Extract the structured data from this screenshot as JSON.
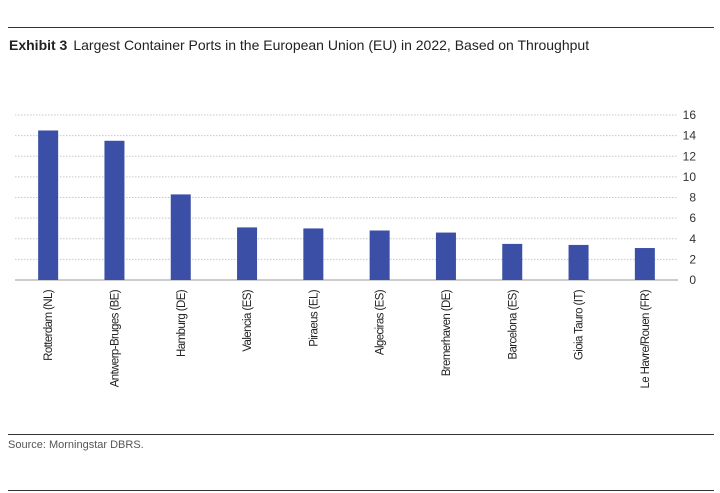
{
  "header": {
    "exhibit": "Exhibit 3",
    "title": "Largest Container Ports in the European Union (EU) in 2022, Based on Throughput"
  },
  "footer": {
    "source": "Source: Morningstar DBRS."
  },
  "chart_data": {
    "type": "bar",
    "categories": [
      "Rotterdam (NL)",
      "Antwerp-Bruges (BE)",
      "Hamburg (DE)",
      "Valencia (ES)",
      "Piraeus (EL)",
      "Algeciras (ES)",
      "Bremerhaven (DE)",
      "Barcelona (ES)",
      "Gioia Tauro (IT)",
      "Le Havre/Rouen (FR)"
    ],
    "values": [
      14.5,
      13.5,
      8.3,
      5.1,
      5.0,
      4.8,
      4.6,
      3.5,
      3.4,
      3.1
    ],
    "ylim": [
      0,
      16
    ],
    "yticks": [
      0,
      2,
      4,
      6,
      8,
      10,
      12,
      14,
      16
    ],
    "y_axis_side": "right",
    "grid": true,
    "bar_color": "#3b4fa6"
  }
}
